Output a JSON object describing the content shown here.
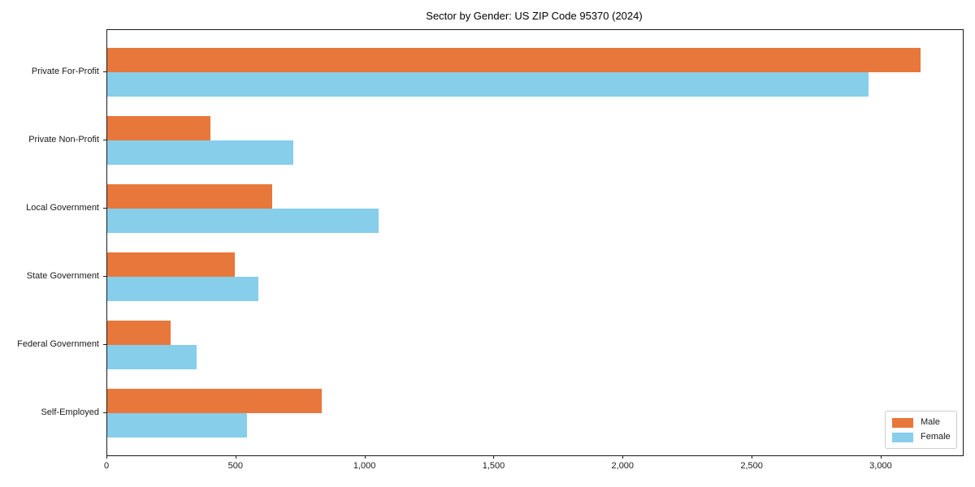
{
  "figure": {
    "title": "Sector by Gender: US ZIP Code 95370 (2024)"
  },
  "chart_data": {
    "type": "bar",
    "orientation": "horizontal",
    "title": "Sector by Gender: US ZIP Code 95370 (2024)",
    "categories": [
      "Private For-Profit",
      "Private Non-Profit",
      "Local Government",
      "State Government",
      "Federal Government",
      "Self-Employed"
    ],
    "series": [
      {
        "name": "Male",
        "color": "#e8773b",
        "values": [
          3150,
          400,
          640,
          495,
          245,
          830
        ]
      },
      {
        "name": "Female",
        "color": "#87ceeb",
        "values": [
          2950,
          720,
          1050,
          585,
          345,
          540
        ]
      }
    ],
    "xlabel": "",
    "ylabel": "",
    "xlim": [
      0,
      3315
    ],
    "xticks": [
      0,
      500,
      1000,
      1500,
      2000,
      2500,
      3000
    ],
    "xtick_labels": [
      "0",
      "500",
      "1,000",
      "1,500",
      "2,000",
      "2,500",
      "3,000"
    ],
    "grid": false,
    "legend_position": "lower right",
    "axis_color": "#1a1a1a",
    "background_color": "#ffffff"
  }
}
